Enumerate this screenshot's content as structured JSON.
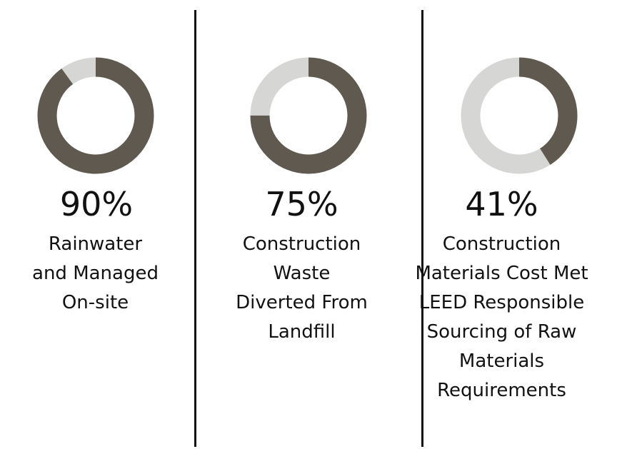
{
  "chart_data": [
    {
      "type": "pie",
      "donut": true,
      "value": 90,
      "percent_label": "90%",
      "label_lines": [
        "Rainwater",
        "and Managed",
        "On-site"
      ]
    },
    {
      "type": "pie",
      "donut": true,
      "value": 75,
      "percent_label": "75%",
      "label_lines": [
        "Construction",
        "Waste",
        "Diverted From",
        "Landfill"
      ]
    },
    {
      "type": "pie",
      "donut": true,
      "value": 41,
      "percent_label": "41%",
      "label_lines": [
        "Construction",
        "Materials Cost Met",
        "LEED Responsible",
        "Sourcing of Raw",
        "Materials",
        "Requirements"
      ]
    }
  ],
  "colors": {
    "filled": "#5f594f",
    "remaining": "#d6d6d4"
  }
}
